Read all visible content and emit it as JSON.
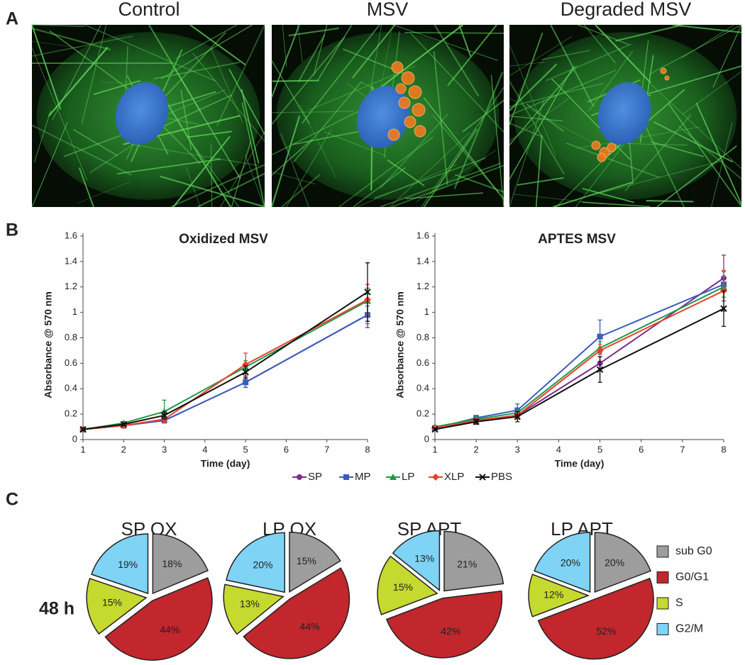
{
  "figure": {
    "panel_labels": [
      "A",
      "B",
      "C"
    ],
    "image_titles": [
      "Control",
      "MSV",
      "Degraded MSV"
    ],
    "row_label": "48 h"
  },
  "chart_data": [
    {
      "type": "line",
      "title": "Oxidized MSV",
      "x_label": "Time (day)",
      "y_label": "Absorbance @ 570 nm",
      "x": [
        1,
        2,
        3,
        5,
        8
      ],
      "xlim": [
        1,
        8
      ],
      "xticks": [
        1,
        2,
        3,
        4,
        5,
        6,
        7,
        8
      ],
      "ylim": [
        0,
        1.6
      ],
      "yticks": [
        0,
        0.2,
        0.4,
        0.6,
        0.8,
        1,
        1.2,
        1.4,
        1.6
      ],
      "legend": "bottom",
      "series": [
        {
          "name": "SP",
          "color": "#7b2d8e",
          "marker": "circle",
          "values": [
            0.08,
            0.11,
            0.15,
            0.45,
            0.98
          ],
          "errors": [
            0.01,
            0.01,
            0.02,
            0.04,
            0.1
          ]
        },
        {
          "name": "MP",
          "color": "#3a5dbd",
          "marker": "square",
          "values": [
            0.08,
            0.11,
            0.15,
            0.45,
            0.98
          ],
          "errors": [
            0.01,
            0.01,
            0.02,
            0.04,
            0.07
          ]
        },
        {
          "name": "LP",
          "color": "#1f9a48",
          "marker": "triangle",
          "values": [
            0.08,
            0.13,
            0.22,
            0.57,
            1.09
          ],
          "errors": [
            0.01,
            0.01,
            0.09,
            0.05,
            0.1
          ]
        },
        {
          "name": "XLP",
          "color": "#e8412b",
          "marker": "diamond",
          "values": [
            0.08,
            0.11,
            0.16,
            0.59,
            1.1
          ],
          "errors": [
            0.01,
            0.02,
            0.03,
            0.09,
            0.12
          ]
        },
        {
          "name": "PBS",
          "color": "#111111",
          "marker": "x",
          "values": [
            0.08,
            0.12,
            0.19,
            0.53,
            1.16
          ],
          "errors": [
            0.01,
            0.01,
            0.03,
            0.05,
            0.23
          ]
        }
      ]
    },
    {
      "type": "line",
      "title": "APTES MSV",
      "x_label": "Time (day)",
      "y_label": "Absorbance @ 570 nm",
      "x": [
        1,
        2,
        3,
        5,
        8
      ],
      "xlim": [
        1,
        8
      ],
      "xticks": [
        1,
        2,
        3,
        4,
        5,
        6,
        7,
        8
      ],
      "ylim": [
        0,
        1.6
      ],
      "yticks": [
        0,
        0.2,
        0.4,
        0.6,
        0.8,
        1,
        1.2,
        1.4,
        1.6
      ],
      "series": [
        {
          "name": "SP",
          "color": "#7b2d8e",
          "marker": "circle",
          "values": [
            0.09,
            0.15,
            0.19,
            0.6,
            1.27
          ],
          "errors": [
            0.01,
            0.02,
            0.03,
            0.05,
            0.18
          ]
        },
        {
          "name": "MP",
          "color": "#3a5dbd",
          "marker": "square",
          "values": [
            0.09,
            0.17,
            0.23,
            0.81,
            1.22
          ],
          "errors": [
            0.01,
            0.02,
            0.05,
            0.13,
            0.1
          ]
        },
        {
          "name": "LP",
          "color": "#1f9a48",
          "marker": "triangle",
          "values": [
            0.1,
            0.16,
            0.21,
            0.72,
            1.2
          ],
          "errors": [
            0.01,
            0.02,
            0.03,
            0.05,
            0.08
          ]
        },
        {
          "name": "XLP",
          "color": "#e8412b",
          "marker": "diamond",
          "values": [
            0.09,
            0.15,
            0.19,
            0.7,
            1.17
          ],
          "errors": [
            0.01,
            0.02,
            0.03,
            0.05,
            0.16
          ]
        },
        {
          "name": "PBS",
          "color": "#111111",
          "marker": "x",
          "values": [
            0.08,
            0.14,
            0.18,
            0.55,
            1.03
          ],
          "errors": [
            0.01,
            0.02,
            0.04,
            0.1,
            0.14
          ]
        }
      ]
    },
    {
      "type": "pie",
      "title": "SP OX",
      "legend": "right",
      "categories": [
        "sub G0",
        "G0/G1",
        "S",
        "G2/M"
      ],
      "colors": [
        "#9d9d9d",
        "#c1272d",
        "#c6d92e",
        "#7fd3f5"
      ],
      "values": [
        18,
        44,
        15,
        19
      ],
      "value_labels": [
        "18%",
        "44%",
        "15%",
        "19%"
      ]
    },
    {
      "type": "pie",
      "title": "LP OX",
      "categories": [
        "sub G0",
        "G0/G1",
        "S",
        "G2/M"
      ],
      "colors": [
        "#9d9d9d",
        "#c1272d",
        "#c6d92e",
        "#7fd3f5"
      ],
      "values": [
        15,
        44,
        13,
        20
      ],
      "value_labels": [
        "15%",
        "44%",
        "13%",
        "20%"
      ]
    },
    {
      "type": "pie",
      "title": "SP APT",
      "categories": [
        "sub G0",
        "G0/G1",
        "S",
        "G2/M"
      ],
      "colors": [
        "#9d9d9d",
        "#c1272d",
        "#c6d92e",
        "#7fd3f5"
      ],
      "values": [
        21,
        42,
        15,
        13
      ],
      "value_labels": [
        "21%",
        "42%",
        "15%",
        "13%"
      ]
    },
    {
      "type": "pie",
      "title": "LP APT",
      "categories": [
        "sub G0",
        "G0/G1",
        "S",
        "G2/M"
      ],
      "colors": [
        "#9d9d9d",
        "#c1272d",
        "#c6d92e",
        "#7fd3f5"
      ],
      "values": [
        20,
        52,
        12,
        20
      ],
      "value_labels": [
        "20%",
        "52%",
        "12%",
        "20%"
      ]
    }
  ]
}
